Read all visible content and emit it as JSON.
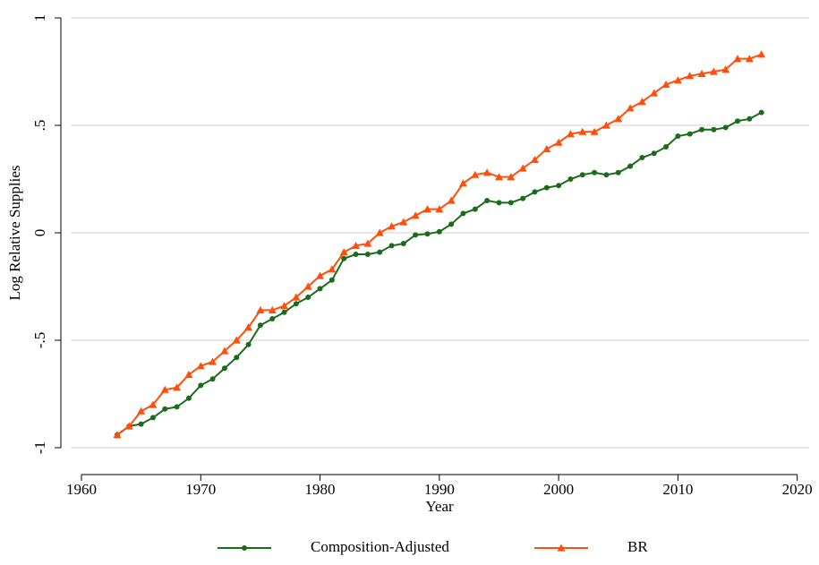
{
  "chart_data": {
    "type": "line",
    "x_label": "Year",
    "y_label": "Log Relative Supplies",
    "x": [
      1963,
      1964,
      1965,
      1966,
      1967,
      1968,
      1969,
      1970,
      1971,
      1972,
      1973,
      1974,
      1975,
      1976,
      1977,
      1978,
      1979,
      1980,
      1981,
      1982,
      1983,
      1984,
      1985,
      1986,
      1987,
      1988,
      1989,
      1990,
      1991,
      1992,
      1993,
      1994,
      1995,
      1996,
      1997,
      1998,
      1999,
      2000,
      2001,
      2002,
      2003,
      2004,
      2005,
      2006,
      2007,
      2008,
      2009,
      2010,
      2011,
      2012,
      2013,
      2014,
      2015,
      2016,
      2017
    ],
    "series": [
      {
        "name": "Composition-Adjusted",
        "color": "#1a6b1a",
        "marker": "circle",
        "values": [
          -0.94,
          -0.9,
          -0.89,
          -0.86,
          -0.82,
          -0.81,
          -0.77,
          -0.71,
          -0.68,
          -0.63,
          -0.58,
          -0.52,
          -0.43,
          -0.4,
          -0.37,
          -0.33,
          -0.3,
          -0.26,
          -0.22,
          -0.12,
          -0.1,
          -0.1,
          -0.09,
          -0.06,
          -0.05,
          -0.01,
          -0.005,
          0.005,
          0.04,
          0.09,
          0.11,
          0.15,
          0.14,
          0.14,
          0.16,
          0.19,
          0.21,
          0.22,
          0.25,
          0.27,
          0.28,
          0.27,
          0.28,
          0.31,
          0.35,
          0.37,
          0.4,
          0.45,
          0.46,
          0.48,
          0.48,
          0.49,
          0.52,
          0.53,
          0.56
        ]
      },
      {
        "name": "BR",
        "color": "#ff4f0a",
        "marker": "triangle",
        "values": [
          -0.94,
          -0.9,
          -0.83,
          -0.8,
          -0.73,
          -0.72,
          -0.66,
          -0.62,
          -0.6,
          -0.55,
          -0.5,
          -0.44,
          -0.36,
          -0.36,
          -0.34,
          -0.3,
          -0.25,
          -0.2,
          -0.17,
          -0.09,
          -0.06,
          -0.05,
          0.0,
          0.03,
          0.05,
          0.08,
          0.11,
          0.11,
          0.15,
          0.23,
          0.27,
          0.28,
          0.26,
          0.26,
          0.3,
          0.34,
          0.39,
          0.42,
          0.46,
          0.47,
          0.47,
          0.5,
          0.53,
          0.58,
          0.61,
          0.65,
          0.69,
          0.71,
          0.73,
          0.74,
          0.75,
          0.76,
          0.81,
          0.81,
          0.83
        ]
      }
    ],
    "xlim": [
      1959.1,
      2021.0
    ],
    "xticks": [
      1960,
      1970,
      1980,
      1990,
      2000,
      2010,
      2020
    ],
    "ylim": [
      -1.075,
      1.075
    ],
    "yticks": [
      -1,
      {
        "value": -0.5,
        "label": "-.5"
      },
      0,
      {
        "value": 0.5,
        "label": ".5"
      },
      1
    ],
    "grid": true,
    "legend": "bottom"
  }
}
